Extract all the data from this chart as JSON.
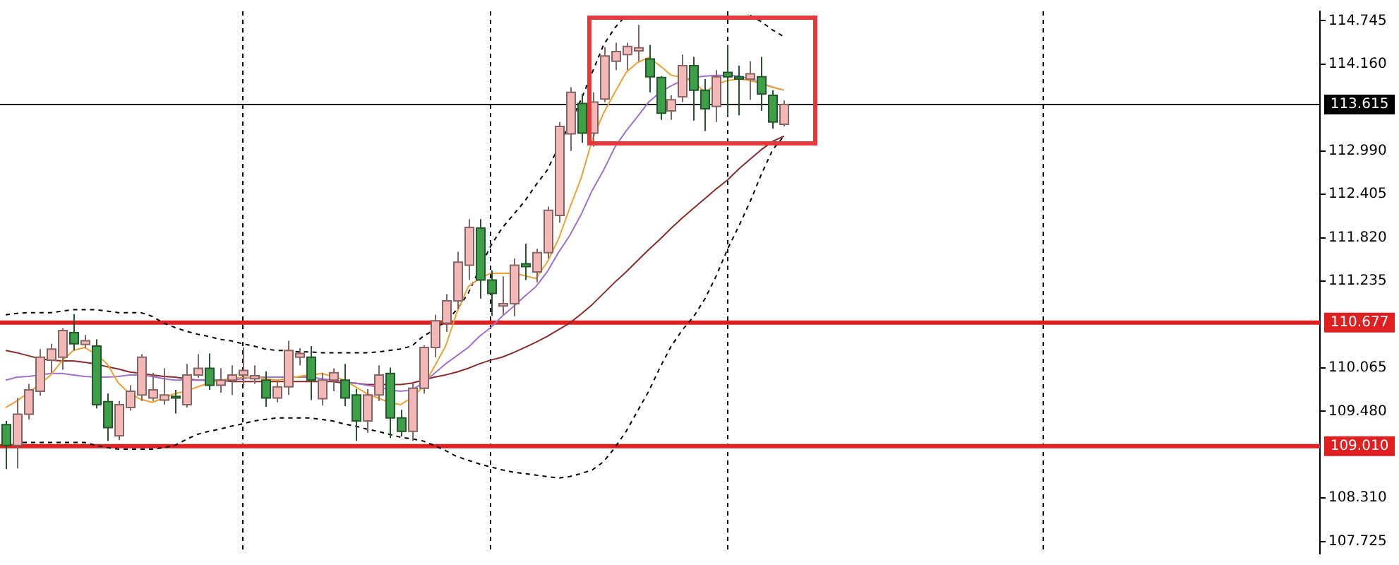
{
  "chart_data": {
    "type": "candlestick",
    "categories": [
      null,
      null,
      null,
      null,
      null,
      null,
      null,
      null,
      null,
      null,
      null,
      null,
      null,
      null,
      null,
      null,
      null,
      null,
      null,
      null,
      null,
      null,
      null,
      null,
      null,
      null,
      null,
      null,
      null,
      null,
      null,
      null,
      null,
      null,
      null,
      null,
      null,
      null,
      null,
      null,
      null,
      null,
      null,
      null,
      null,
      null,
      null,
      null,
      null,
      null,
      null,
      null,
      null,
      null,
      null,
      null,
      null,
      null,
      null,
      null,
      null,
      null,
      null,
      null,
      null,
      null,
      null,
      null,
      null,
      null,
      null,
      null,
      null,
      null,
      null,
      null,
      null,
      null,
      null,
      null,
      null,
      null,
      null,
      null,
      null,
      null,
      null,
      null,
      null,
      null,
      null,
      null,
      null,
      null,
      null,
      null,
      null,
      null,
      null,
      null,
      null,
      null,
      null,
      null,
      null,
      null,
      null,
      null,
      null,
      null,
      null,
      null,
      null,
      null,
      null,
      null,
      null
    ],
    "ylim": [
      107.56,
      114.873
    ],
    "yticks": [
      114.745,
      {
        "value": 114.16,
        "label": "114.160"
      },
      {
        "value": 112.99,
        "label": "112.990"
      },
      112.405,
      {
        "value": 111.82,
        "label": "111.820"
      },
      111.235,
      110.065,
      {
        "value": 109.48,
        "label": "109.480"
      },
      {
        "value": 108.31,
        "label": "108.310"
      },
      107.725
    ],
    "grid": "x",
    "legend": false,
    "tick_labels": "y",
    "series": [
      {
        "ohlc": [
          [
            109.3,
            109.35,
            108.7,
            109.02
          ],
          [
            109.02,
            109.66,
            108.71,
            109.44
          ],
          [
            109.44,
            109.85,
            109.37,
            109.77
          ],
          [
            109.75,
            110.32,
            109.69,
            110.21
          ],
          [
            110.17,
            110.39,
            110.0,
            110.32
          ],
          [
            110.21,
            110.6,
            110.04,
            110.57
          ],
          [
            110.54,
            110.79,
            110.3,
            110.39
          ],
          [
            110.38,
            110.51,
            110.33,
            110.43
          ],
          [
            110.36,
            110.45,
            109.52,
            109.57
          ],
          [
            109.61,
            109.72,
            109.08,
            109.26
          ],
          [
            109.15,
            109.62,
            109.09,
            109.57
          ],
          [
            109.53,
            109.83,
            109.49,
            109.75
          ],
          [
            109.7,
            110.25,
            109.62,
            110.21
          ],
          [
            109.66,
            110.0,
            109.62,
            109.77
          ],
          [
            109.63,
            110.06,
            109.57,
            109.7
          ],
          [
            109.68,
            109.77,
            109.45,
            109.66
          ],
          [
            109.57,
            110.12,
            109.53,
            109.97
          ],
          [
            109.97,
            110.25,
            109.93,
            110.06
          ],
          [
            110.06,
            110.26,
            109.77,
            109.83
          ],
          [
            109.83,
            110.06,
            109.73,
            109.9
          ],
          [
            109.9,
            110.1,
            109.7,
            109.97
          ],
          [
            109.97,
            110.34,
            109.81,
            110.03
          ],
          [
            109.92,
            110.1,
            109.85,
            109.96
          ],
          [
            109.9,
            110.02,
            109.54,
            109.66
          ],
          [
            109.66,
            109.88,
            109.6,
            109.81
          ],
          [
            109.81,
            110.43,
            109.7,
            110.3
          ],
          [
            110.21,
            110.33,
            110.1,
            110.26
          ],
          [
            110.21,
            110.36,
            109.63,
            109.9
          ],
          [
            109.65,
            110.0,
            109.56,
            109.9
          ],
          [
            109.9,
            110.06,
            109.75,
            110.0
          ],
          [
            109.9,
            110.12,
            109.55,
            109.66
          ],
          [
            109.7,
            109.78,
            109.08,
            109.35
          ],
          [
            109.35,
            109.78,
            109.19,
            109.7
          ],
          [
            109.7,
            110.1,
            109.62,
            109.97
          ],
          [
            109.99,
            110.07,
            109.12,
            109.39
          ],
          [
            109.39,
            109.5,
            109.14,
            109.21
          ],
          [
            109.21,
            109.85,
            109.08,
            109.79
          ],
          [
            109.79,
            110.37,
            109.72,
            110.34
          ],
          [
            110.34,
            110.78,
            110.21,
            110.7
          ],
          [
            110.67,
            111.06,
            110.55,
            110.97
          ],
          [
            110.97,
            111.63,
            110.86,
            111.49
          ],
          [
            111.45,
            112.07,
            111.25,
            111.96
          ],
          [
            111.95,
            112.07,
            111.0,
            111.25
          ],
          [
            111.25,
            111.38,
            110.77,
            111.07
          ],
          [
            110.9,
            111.3,
            110.78,
            110.93
          ],
          [
            110.93,
            111.54,
            110.76,
            111.45
          ],
          [
            111.47,
            111.74,
            111.25,
            111.43
          ],
          [
            111.36,
            111.67,
            111.22,
            111.62
          ],
          [
            111.62,
            112.24,
            111.54,
            112.19
          ],
          [
            112.12,
            113.38,
            112.02,
            113.32
          ],
          [
            113.22,
            113.85,
            112.99,
            113.78
          ],
          [
            113.63,
            113.76,
            113.1,
            113.23
          ],
          [
            113.23,
            113.78,
            113.05,
            113.65
          ],
          [
            113.69,
            114.39,
            113.65,
            114.27
          ],
          [
            114.2,
            114.45,
            114.08,
            114.33
          ],
          [
            114.29,
            114.45,
            114.08,
            114.4
          ],
          [
            114.34,
            114.69,
            114.2,
            114.38
          ],
          [
            114.23,
            114.42,
            113.78,
            113.99
          ],
          [
            113.98,
            114.0,
            113.41,
            113.5
          ],
          [
            113.53,
            113.74,
            113.41,
            113.68
          ],
          [
            113.72,
            114.29,
            113.65,
            114.14
          ],
          [
            114.14,
            114.26,
            113.4,
            113.81
          ],
          [
            113.81,
            113.96,
            113.26,
            113.56
          ],
          [
            113.59,
            114.08,
            113.38,
            113.99
          ],
          [
            114.05,
            114.42,
            113.45,
            113.99
          ],
          [
            113.99,
            114.14,
            113.47,
            113.96
          ],
          [
            113.96,
            114.2,
            113.68,
            114.03
          ],
          [
            113.99,
            114.26,
            113.53,
            113.76
          ],
          [
            113.74,
            113.81,
            113.29,
            113.38
          ],
          [
            113.35,
            113.67,
            113.32,
            113.615
          ],
          null,
          null,
          null,
          null,
          null,
          null,
          null,
          null,
          null,
          null,
          null,
          null,
          null,
          null,
          null,
          null,
          null,
          null,
          null,
          null,
          null,
          null,
          null,
          null,
          null,
          null,
          null,
          null,
          null,
          null,
          null,
          null,
          null,
          null,
          null,
          null,
          null,
          null,
          null,
          null,
          null,
          null,
          null,
          null,
          null,
          null,
          null
        ],
        "colors": [
          "#3e9e4a",
          "#f4b8b8",
          "#f4b8b8",
          "#f4b8b8",
          "#f4b8b8",
          "#f4b8b8",
          "#3e9e4a",
          "#f4b8b8",
          "#3e9e4a",
          "#3e9e4a",
          "#f4b8b8",
          "#f4b8b8",
          "#f4b8b8",
          "#f4b8b8",
          "#f4b8b8",
          "#3e9e4a",
          "#f4b8b8",
          "#f4b8b8",
          "#3e9e4a",
          "#f4b8b8",
          "#f4b8b8",
          "#f4b8b8",
          "#f4b8b8",
          "#3e9e4a",
          "#f4b8b8",
          "#f4b8b8",
          "#f4b8b8",
          "#3e9e4a",
          "#f4b8b8",
          "#f4b8b8",
          "#3e9e4a",
          "#3e9e4a",
          "#f4b8b8",
          "#f4b8b8",
          "#3e9e4a",
          "#3e9e4a",
          "#f4b8b8",
          "#f4b8b8",
          "#f4b8b8",
          "#f4b8b8",
          "#f4b8b8",
          "#f4b8b8",
          "#3e9e4a",
          "#3e9e4a",
          "#f4b8b8",
          "#f4b8b8",
          "#3e9e4a",
          "#f4b8b8",
          "#f4b8b8",
          "#f4b8b8",
          "#f4b8b8",
          "#3e9e4a",
          "#f4b8b8",
          "#f4b8b8",
          "#f4b8b8",
          "#f4b8b8",
          "#f4b8b8",
          "#3e9e4a",
          "#3e9e4a",
          "#f4b8b8",
          "#f4b8b8",
          "#3e9e4a",
          "#3e9e4a",
          "#f4b8b8",
          "#3e9e4a",
          "#3e9e4a",
          "#f4b8b8",
          "#3e9e4a",
          "#3e9e4a",
          "#f4b8b8",
          null,
          null,
          null,
          null,
          null,
          null,
          null,
          null,
          null,
          null,
          null,
          null,
          null,
          null,
          null,
          null,
          null,
          null,
          null,
          null,
          null,
          null,
          null,
          null,
          null,
          null,
          null,
          null,
          null,
          null,
          null,
          null,
          null,
          null,
          null,
          null,
          null,
          null,
          null,
          null,
          null,
          null,
          null,
          null,
          null,
          null,
          null
        ]
      },
      {
        "type": "line",
        "color": "#f0a030",
        "line_style": "solid",
        "values": [
          109.53,
          109.62,
          109.73,
          109.84,
          109.97,
          110.16,
          110.3,
          110.34,
          110.25,
          110.12,
          109.86,
          109.72,
          109.64,
          109.6,
          109.66,
          109.72,
          109.75,
          109.81,
          109.86,
          109.9,
          109.92,
          109.94,
          109.94,
          109.92,
          109.9,
          109.92,
          109.95,
          109.97,
          109.99,
          109.95,
          109.9,
          109.81,
          109.72,
          109.66,
          109.6,
          109.57,
          109.66,
          109.81,
          110.08,
          110.36,
          110.81,
          111.16,
          111.27,
          111.34,
          111.34,
          111.34,
          111.31,
          111.27,
          111.49,
          111.8,
          112.22,
          112.62,
          113.14,
          113.5,
          113.78,
          114.05,
          114.18,
          114.25,
          114.14,
          114.01,
          113.98,
          113.92,
          113.78,
          113.89,
          113.94,
          113.96,
          113.94,
          113.9,
          113.85,
          113.81,
          null,
          null,
          null,
          null,
          null,
          null,
          null,
          null,
          null,
          null,
          null,
          null,
          null,
          null,
          null,
          null,
          null,
          null,
          null,
          null,
          null,
          null,
          null,
          null,
          null,
          null,
          null,
          null,
          null,
          null,
          null,
          null,
          null,
          null,
          null,
          null,
          null,
          null,
          null,
          null,
          null,
          null,
          null,
          null,
          null,
          null,
          null
        ]
      },
      {
        "type": "line",
        "color": "#a070d0",
        "line_style": "solid",
        "values": [
          109.9,
          109.94,
          109.95,
          109.97,
          109.99,
          109.99,
          109.97,
          109.95,
          109.94,
          109.94,
          109.95,
          109.97,
          109.97,
          109.95,
          109.92,
          109.9,
          109.9,
          109.9,
          109.9,
          109.9,
          109.9,
          109.92,
          109.94,
          109.94,
          109.94,
          109.94,
          109.94,
          109.94,
          109.92,
          109.9,
          109.88,
          109.86,
          109.83,
          109.81,
          109.77,
          109.75,
          109.77,
          109.86,
          109.99,
          110.12,
          110.23,
          110.34,
          110.49,
          110.61,
          110.76,
          110.89,
          111.03,
          111.16,
          111.36,
          111.62,
          111.85,
          112.13,
          112.46,
          112.73,
          113.04,
          113.26,
          113.45,
          113.65,
          113.78,
          113.87,
          113.94,
          113.98,
          114.0,
          114.01,
          114.01,
          114.0,
          113.96,
          113.9,
          113.85,
          113.81,
          null,
          null,
          null,
          null,
          null,
          null,
          null,
          null,
          null,
          null,
          null,
          null,
          null,
          null,
          null,
          null,
          null,
          null,
          null,
          null,
          null,
          null,
          null,
          null,
          null,
          null,
          null,
          null,
          null,
          null,
          null,
          null,
          null,
          null,
          null,
          null,
          null,
          null,
          null,
          null,
          null,
          null,
          null,
          null,
          null,
          null,
          null
        ]
      },
      {
        "type": "line",
        "color": "#8b2a2a",
        "line_style": "solid",
        "values": [
          110.3,
          110.27,
          110.23,
          110.19,
          110.17,
          110.16,
          110.16,
          110.14,
          110.12,
          110.08,
          110.05,
          110.01,
          109.99,
          109.97,
          109.95,
          109.94,
          109.92,
          109.9,
          109.9,
          109.9,
          109.88,
          109.88,
          109.88,
          109.88,
          109.88,
          109.88,
          109.88,
          109.88,
          109.88,
          109.88,
          109.86,
          109.86,
          109.84,
          109.84,
          109.84,
          109.84,
          109.86,
          109.9,
          109.94,
          109.97,
          110.01,
          110.06,
          110.12,
          110.17,
          110.21,
          110.27,
          110.34,
          110.41,
          110.49,
          110.58,
          110.67,
          110.79,
          110.92,
          111.07,
          111.22,
          111.36,
          111.51,
          111.66,
          111.8,
          111.95,
          112.09,
          112.22,
          112.35,
          112.48,
          112.6,
          112.75,
          112.88,
          113.01,
          113.12,
          113.19,
          null,
          null,
          null,
          null,
          null,
          null,
          null,
          null,
          null,
          null,
          null,
          null,
          null,
          null,
          null,
          null,
          null,
          null,
          null,
          null,
          null,
          null,
          null,
          null,
          null,
          null,
          null,
          null,
          null,
          null,
          null,
          null,
          null,
          null,
          null,
          null,
          null,
          null,
          null,
          null,
          null,
          null,
          null,
          null,
          null,
          null,
          null
        ]
      },
      {
        "type": "line",
        "color": "#000000",
        "line_style": "dashed",
        "values": [
          110.78,
          110.8,
          110.81,
          110.81,
          110.81,
          110.83,
          110.85,
          110.85,
          110.85,
          110.83,
          110.81,
          110.81,
          110.81,
          110.76,
          110.67,
          110.61,
          110.56,
          110.52,
          110.49,
          110.45,
          110.43,
          110.39,
          110.36,
          110.32,
          110.3,
          110.3,
          110.28,
          110.28,
          110.27,
          110.27,
          110.27,
          110.27,
          110.27,
          110.28,
          110.3,
          110.32,
          110.36,
          110.49,
          110.58,
          110.69,
          110.85,
          111.07,
          111.4,
          111.71,
          111.95,
          112.13,
          112.31,
          112.53,
          112.73,
          113.04,
          113.36,
          113.68,
          114.05,
          114.42,
          114.65,
          114.82,
          null,
          null,
          null,
          null,
          null,
          null,
          null,
          null,
          null,
          null,
          114.82,
          114.73,
          114.62,
          114.53,
          null,
          null,
          null,
          null,
          null,
          null,
          null,
          null,
          null,
          null,
          null,
          null,
          null,
          null,
          null,
          null,
          null,
          null,
          null,
          null,
          null,
          null,
          null,
          null,
          null,
          null,
          null,
          null,
          null,
          null,
          null,
          null,
          null,
          null,
          null,
          null,
          null,
          null,
          null,
          null,
          null,
          null,
          null,
          null,
          null,
          null,
          null
        ]
      },
      {
        "type": "line",
        "color": "#000000",
        "line_style": "dashed",
        "values": [
          109.06,
          109.06,
          109.06,
          109.06,
          109.06,
          109.06,
          109.06,
          109.06,
          109.02,
          108.99,
          108.97,
          108.97,
          108.97,
          108.97,
          108.99,
          109.02,
          109.1,
          109.17,
          109.21,
          109.24,
          109.28,
          109.31,
          109.35,
          109.37,
          109.39,
          109.39,
          109.39,
          109.39,
          109.37,
          109.35,
          109.31,
          109.28,
          109.24,
          109.21,
          109.17,
          109.13,
          109.11,
          109.08,
          109.02,
          108.95,
          108.87,
          108.82,
          108.77,
          108.73,
          108.69,
          108.66,
          108.64,
          108.62,
          108.6,
          108.58,
          108.6,
          108.64,
          108.69,
          108.8,
          108.99,
          109.21,
          109.48,
          109.75,
          110.07,
          110.36,
          110.58,
          110.76,
          111.0,
          111.31,
          111.67,
          111.98,
          112.31,
          112.68,
          113.01,
          113.19,
          null,
          null,
          null,
          null,
          null,
          null,
          null,
          null,
          null,
          null,
          null,
          null,
          null,
          null,
          null,
          null,
          null,
          null,
          null,
          null,
          null,
          null,
          null,
          null,
          null,
          null,
          null,
          null,
          null,
          null,
          null,
          null,
          null,
          null,
          null,
          null,
          null,
          null,
          null,
          null,
          null,
          null,
          null,
          null,
          null,
          null,
          null
        ]
      }
    ],
    "ref_lines": [
      {
        "axis": "y",
        "value": 113.615,
        "label": "113.615",
        "color": "#000000"
      },
      {
        "axis": "y",
        "value": 110.677,
        "label": "110.677",
        "color": "#e02020"
      },
      {
        "axis": "y",
        "value": 109.01,
        "label": "109.010",
        "color": "#e02020"
      }
    ]
  }
}
